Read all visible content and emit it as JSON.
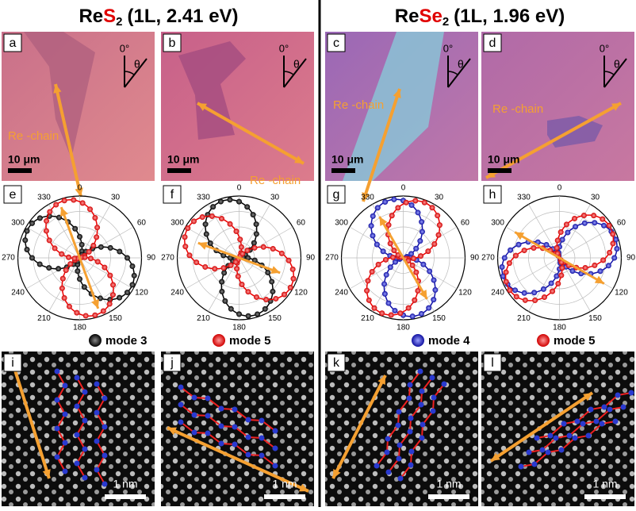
{
  "header": {
    "left": {
      "base": "Re",
      "element": "S",
      "subscript": "2",
      "details": "(1L, 2.41 eV)"
    },
    "right": {
      "base": "Re",
      "element": "Se",
      "subscript": "2",
      "details": "(1L, 1.96 eV)"
    }
  },
  "micrographs": [
    {
      "label": "a",
      "chain_label": "Re -chain",
      "angle_zero": "0°",
      "angle_symbol": "θ",
      "scale_bar": "10 μm"
    },
    {
      "label": "b",
      "chain_label": "Re -chain",
      "angle_zero": "0°",
      "angle_symbol": "θ",
      "scale_bar": "10 μm"
    },
    {
      "label": "c",
      "chain_label": "Re -chain",
      "angle_zero": "0°",
      "angle_symbol": "θ",
      "scale_bar": "10 μm"
    },
    {
      "label": "d",
      "chain_label": "Re -chain",
      "angle_zero": "0°",
      "angle_symbol": "θ",
      "scale_bar": "10 μm"
    }
  ],
  "polar_plots": [
    {
      "label": "e",
      "angle_labels": [
        "0",
        "30",
        "60",
        "90",
        "120",
        "150",
        "180",
        "210",
        "240",
        "270",
        "300",
        "330"
      ]
    },
    {
      "label": "f",
      "angle_labels": [
        "0",
        "30",
        "60",
        "90",
        "120",
        "150",
        "180",
        "210",
        "240",
        "270",
        "300",
        "330"
      ]
    },
    {
      "label": "g",
      "angle_labels": [
        "0",
        "30",
        "60",
        "90",
        "120",
        "150",
        "180",
        "210",
        "240",
        "270",
        "300",
        "330"
      ]
    },
    {
      "label": "h",
      "angle_labels": [
        "0",
        "30",
        "60",
        "90",
        "120",
        "150",
        "180",
        "210",
        "240",
        "270",
        "300",
        "330"
      ]
    }
  ],
  "legends": [
    {
      "entries": [
        "mode 3",
        "mode 5"
      ]
    },
    {
      "entries": [
        "mode 4",
        "mode 5"
      ]
    }
  ],
  "stem_images": [
    {
      "label": "i",
      "scale_bar": "1 nm"
    },
    {
      "label": "j",
      "scale_bar": "1 nm"
    },
    {
      "label": "k",
      "scale_bar": "1 nm"
    },
    {
      "label": "l",
      "scale_bar": "1 nm"
    }
  ]
}
